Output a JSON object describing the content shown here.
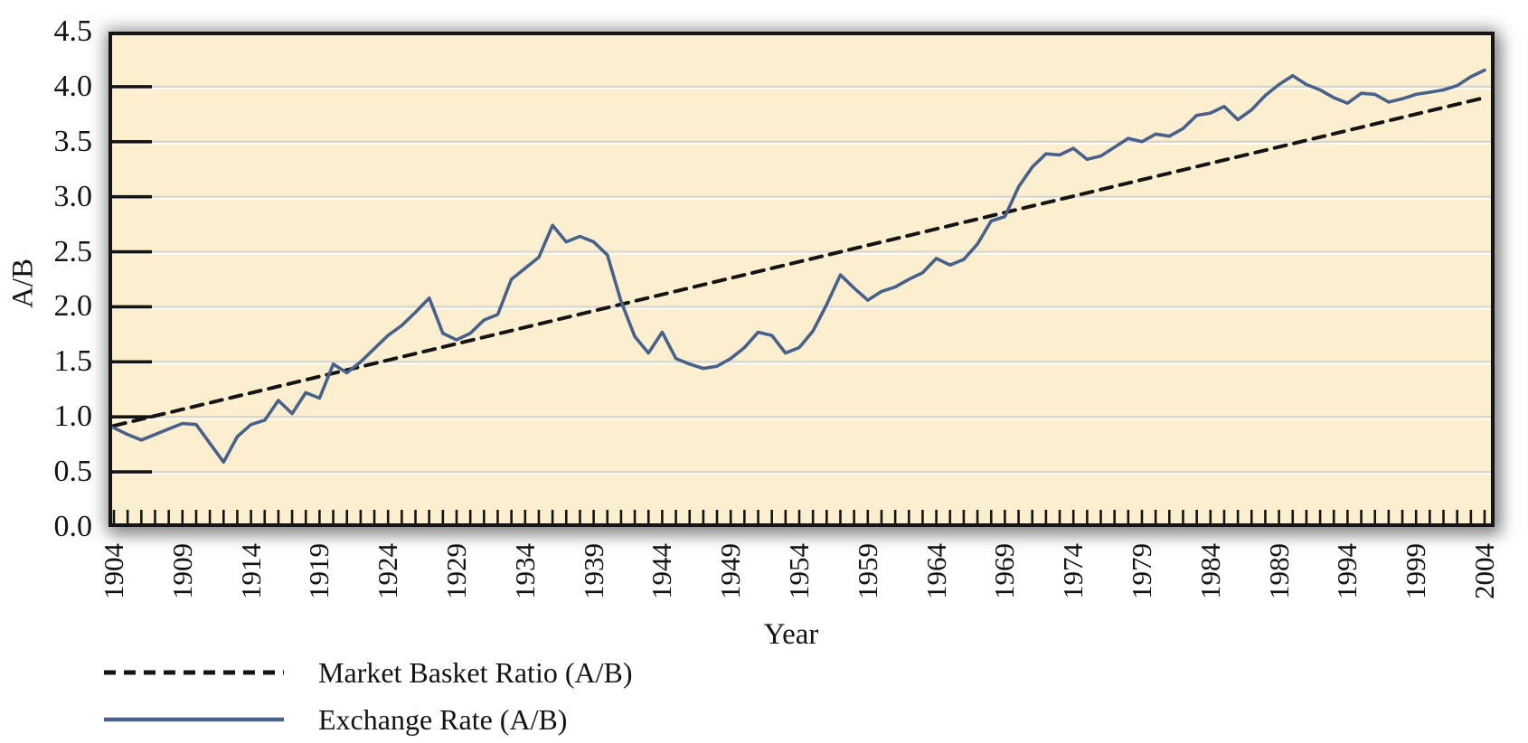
{
  "chart_data": {
    "type": "line",
    "title": "",
    "xlabel": "Year",
    "ylabel": "A/B",
    "x_range": [
      1904,
      2004
    ],
    "ylim": [
      0,
      4.5
    ],
    "y_tick_step": 0.5,
    "y_tick_labels": [
      "0.0",
      "0.5",
      "1.0",
      "1.5",
      "2.0",
      "2.5",
      "3.0",
      "3.5",
      "4.0",
      "4.5"
    ],
    "x_tick_labels": [
      "1904",
      "1909",
      "1914",
      "1919",
      "1924",
      "1929",
      "1934",
      "1939",
      "1944",
      "1949",
      "1954",
      "1959",
      "1964",
      "1969",
      "1974",
      "1979",
      "1984",
      "1989",
      "1994",
      "1999",
      "2004"
    ],
    "x_minor_tick_every_years": 1,
    "grid": "horizontal",
    "legend_position": "bottom-left",
    "plot_background": "#FBEFD0",
    "gridline_color": "#D8D4CA",
    "series": [
      {
        "name": "Market Basket Ratio (A/B)",
        "style": "dashed",
        "color": "#141414",
        "x": [
          1904,
          2004
        ],
        "values": [
          0.92,
          3.9
        ]
      },
      {
        "name": "Exchange Rate (A/B)",
        "style": "solid",
        "color": "#48618C",
        "x_start": 1904,
        "x_step": 1,
        "values": [
          0.9,
          0.84,
          0.79,
          0.84,
          0.89,
          0.94,
          0.93,
          0.76,
          0.59,
          0.82,
          0.93,
          0.97,
          1.15,
          1.03,
          1.22,
          1.17,
          1.48,
          1.4,
          1.5,
          1.62,
          1.74,
          1.83,
          1.95,
          2.08,
          1.76,
          1.7,
          1.76,
          1.88,
          1.93,
          2.25,
          2.35,
          2.45,
          2.74,
          2.59,
          2.64,
          2.59,
          2.47,
          2.05,
          1.73,
          1.58,
          1.77,
          1.53,
          1.48,
          1.44,
          1.46,
          1.53,
          1.63,
          1.77,
          1.74,
          1.58,
          1.63,
          1.78,
          2.02,
          2.29,
          2.17,
          2.06,
          2.14,
          2.18,
          2.25,
          2.31,
          2.44,
          2.38,
          2.43,
          2.57,
          2.78,
          2.82,
          3.09,
          3.27,
          3.39,
          3.38,
          3.44,
          3.34,
          3.37,
          3.45,
          3.53,
          3.5,
          3.57,
          3.55,
          3.62,
          3.74,
          3.76,
          3.82,
          3.7,
          3.79,
          3.92,
          4.02,
          4.1,
          4.02,
          3.97,
          3.9,
          3.85,
          3.94,
          3.93,
          3.86,
          3.89,
          3.93,
          3.95,
          3.97,
          4.01,
          4.09,
          4.15
        ]
      }
    ]
  }
}
